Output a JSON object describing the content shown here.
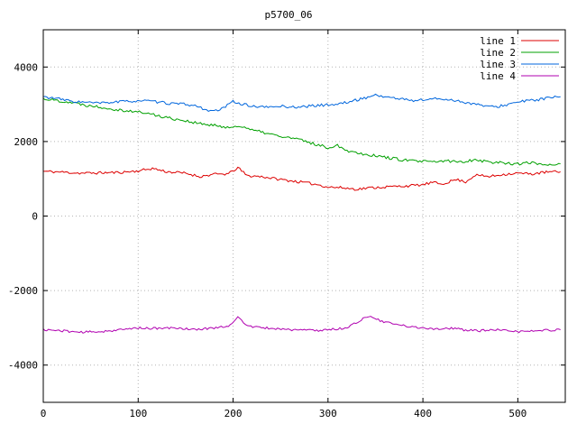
{
  "chart_data": {
    "type": "line",
    "title": "p5700_06",
    "xlabel": "",
    "ylabel": "",
    "xlim": [
      0,
      550
    ],
    "ylim": [
      -5000,
      5000
    ],
    "xticks": [
      0,
      100,
      200,
      300,
      400,
      500
    ],
    "yticks": [
      -4000,
      -2000,
      0,
      2000,
      4000
    ],
    "grid": true,
    "legend_position": "top-right",
    "background_color": "#ffffff",
    "axis_color": "#000000",
    "grid_color": "#b4b4b4",
    "series": [
      {
        "name": "line 1",
        "color": "#dd0000",
        "noise": 35,
        "seed": 11,
        "points": [
          [
            0,
            1200
          ],
          [
            20,
            1180
          ],
          [
            40,
            1150
          ],
          [
            60,
            1160
          ],
          [
            80,
            1170
          ],
          [
            100,
            1210
          ],
          [
            115,
            1280
          ],
          [
            130,
            1190
          ],
          [
            150,
            1150
          ],
          [
            165,
            1060
          ],
          [
            180,
            1120
          ],
          [
            195,
            1130
          ],
          [
            205,
            1300
          ],
          [
            215,
            1080
          ],
          [
            230,
            1060
          ],
          [
            245,
            1000
          ],
          [
            260,
            950
          ],
          [
            275,
            900
          ],
          [
            290,
            840
          ],
          [
            300,
            780
          ],
          [
            315,
            760
          ],
          [
            330,
            720
          ],
          [
            345,
            760
          ],
          [
            360,
            780
          ],
          [
            375,
            800
          ],
          [
            390,
            820
          ],
          [
            400,
            840
          ],
          [
            410,
            900
          ],
          [
            420,
            860
          ],
          [
            435,
            980
          ],
          [
            445,
            920
          ],
          [
            455,
            1100
          ],
          [
            470,
            1060
          ],
          [
            485,
            1120
          ],
          [
            500,
            1150
          ],
          [
            515,
            1130
          ],
          [
            530,
            1180
          ],
          [
            545,
            1190
          ]
        ]
      },
      {
        "name": "line 2",
        "color": "#00a000",
        "noise": 40,
        "seed": 22,
        "points": [
          [
            0,
            3150
          ],
          [
            15,
            3100
          ],
          [
            30,
            3050
          ],
          [
            45,
            2980
          ],
          [
            60,
            2930
          ],
          [
            75,
            2870
          ],
          [
            90,
            2820
          ],
          [
            105,
            2780
          ],
          [
            120,
            2700
          ],
          [
            135,
            2620
          ],
          [
            150,
            2560
          ],
          [
            160,
            2500
          ],
          [
            175,
            2440
          ],
          [
            190,
            2400
          ],
          [
            200,
            2380
          ],
          [
            210,
            2420
          ],
          [
            220,
            2300
          ],
          [
            235,
            2230
          ],
          [
            250,
            2130
          ],
          [
            265,
            2080
          ],
          [
            280,
            1980
          ],
          [
            290,
            1900
          ],
          [
            300,
            1840
          ],
          [
            310,
            1900
          ],
          [
            320,
            1760
          ],
          [
            335,
            1680
          ],
          [
            350,
            1620
          ],
          [
            365,
            1560
          ],
          [
            380,
            1500
          ],
          [
            395,
            1470
          ],
          [
            410,
            1450
          ],
          [
            425,
            1480
          ],
          [
            440,
            1450
          ],
          [
            455,
            1520
          ],
          [
            470,
            1450
          ],
          [
            485,
            1430
          ],
          [
            500,
            1400
          ],
          [
            515,
            1430
          ],
          [
            530,
            1380
          ],
          [
            545,
            1400
          ]
        ]
      },
      {
        "name": "line 3",
        "color": "#0066dd",
        "noise": 35,
        "seed": 33,
        "points": [
          [
            0,
            3200
          ],
          [
            15,
            3150
          ],
          [
            30,
            3080
          ],
          [
            45,
            3050
          ],
          [
            60,
            3030
          ],
          [
            75,
            3060
          ],
          [
            90,
            3080
          ],
          [
            105,
            3100
          ],
          [
            120,
            3060
          ],
          [
            135,
            3020
          ],
          [
            150,
            3000
          ],
          [
            160,
            2960
          ],
          [
            170,
            2870
          ],
          [
            180,
            2800
          ],
          [
            190,
            2900
          ],
          [
            200,
            3080
          ],
          [
            210,
            3000
          ],
          [
            220,
            2950
          ],
          [
            235,
            2920
          ],
          [
            250,
            2950
          ],
          [
            265,
            2920
          ],
          [
            280,
            2950
          ],
          [
            295,
            2980
          ],
          [
            310,
            3000
          ],
          [
            325,
            3080
          ],
          [
            340,
            3180
          ],
          [
            350,
            3250
          ],
          [
            360,
            3200
          ],
          [
            375,
            3150
          ],
          [
            390,
            3100
          ],
          [
            400,
            3120
          ],
          [
            415,
            3150
          ],
          [
            430,
            3120
          ],
          [
            445,
            3050
          ],
          [
            460,
            2980
          ],
          [
            475,
            2920
          ],
          [
            490,
            3000
          ],
          [
            505,
            3080
          ],
          [
            520,
            3120
          ],
          [
            535,
            3180
          ],
          [
            545,
            3200
          ]
        ]
      },
      {
        "name": "line 4",
        "color": "#b000b0",
        "noise": 30,
        "seed": 44,
        "points": [
          [
            0,
            -3050
          ],
          [
            20,
            -3080
          ],
          [
            40,
            -3120
          ],
          [
            60,
            -3100
          ],
          [
            80,
            -3060
          ],
          [
            100,
            -3000
          ],
          [
            120,
            -3020
          ],
          [
            140,
            -3000
          ],
          [
            160,
            -3050
          ],
          [
            180,
            -3000
          ],
          [
            195,
            -2950
          ],
          [
            205,
            -2720
          ],
          [
            215,
            -2950
          ],
          [
            230,
            -3000
          ],
          [
            245,
            -3020
          ],
          [
            260,
            -3050
          ],
          [
            275,
            -3060
          ],
          [
            290,
            -3070
          ],
          [
            305,
            -3040
          ],
          [
            320,
            -3000
          ],
          [
            335,
            -2780
          ],
          [
            345,
            -2680
          ],
          [
            355,
            -2820
          ],
          [
            370,
            -2900
          ],
          [
            385,
            -2970
          ],
          [
            400,
            -3000
          ],
          [
            415,
            -3030
          ],
          [
            430,
            -3010
          ],
          [
            445,
            -3060
          ],
          [
            460,
            -3080
          ],
          [
            475,
            -3050
          ],
          [
            490,
            -3090
          ],
          [
            505,
            -3100
          ],
          [
            520,
            -3080
          ],
          [
            535,
            -3060
          ],
          [
            545,
            -3050
          ]
        ]
      }
    ]
  }
}
